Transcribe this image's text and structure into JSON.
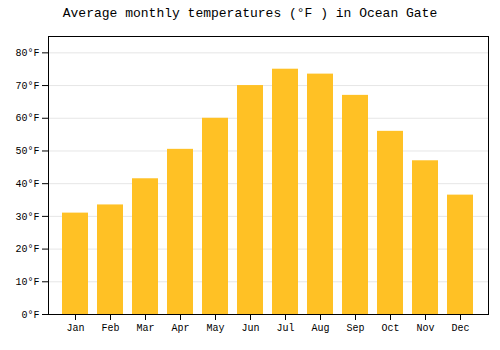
{
  "chart_data": {
    "type": "bar",
    "title": "Average monthly temperatures (°F ) in Ocean Gate",
    "categories": [
      "Jan",
      "Feb",
      "Mar",
      "Apr",
      "May",
      "Jun",
      "Jul",
      "Aug",
      "Sep",
      "Oct",
      "Nov",
      "Dec"
    ],
    "values": [
      31,
      33.5,
      41.5,
      50.5,
      60,
      70,
      75,
      73.5,
      67,
      56,
      47,
      36.5
    ],
    "color": "#FFC125",
    "ylim": [
      0,
      85
    ],
    "yticks": [
      {
        "value": 0,
        "label": "0°F"
      },
      {
        "value": 10,
        "label": "10°F"
      },
      {
        "value": 20,
        "label": "20°F"
      },
      {
        "value": 30,
        "label": "30°F"
      },
      {
        "value": 40,
        "label": "40°F"
      },
      {
        "value": 50,
        "label": "50°F"
      },
      {
        "value": 60,
        "label": "60°F"
      },
      {
        "value": 70,
        "label": "70°F"
      },
      {
        "value": 80,
        "label": "80°F"
      }
    ],
    "grid": true
  }
}
